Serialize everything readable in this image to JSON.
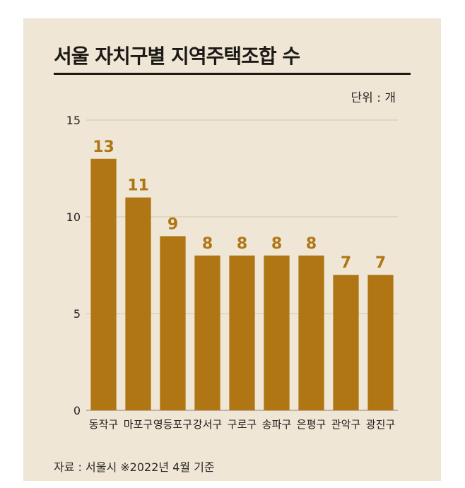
{
  "header": {
    "title": "서울 자치구별 지역주택조합 수",
    "unit": "단위 : 개"
  },
  "footer": {
    "source": "자료 : 서울시 ※2022년 4월 기준"
  },
  "colors": {
    "bar": "#b07614",
    "label": "#b07614",
    "panel": "#efe6d6"
  },
  "chart_data": {
    "type": "bar",
    "title": "서울 자치구별 지역주택조합 수",
    "xlabel": "",
    "ylabel": "",
    "unit": "단위 : 개",
    "categories": [
      "동작구",
      "마포구",
      "영등포구",
      "강서구",
      "구로구",
      "송파구",
      "은평구",
      "관악구",
      "광진구"
    ],
    "values": [
      13,
      11,
      9,
      8,
      8,
      8,
      8,
      7,
      7
    ],
    "value_labels": [
      "13",
      "11",
      "9",
      "8",
      "8",
      "8",
      "8",
      "7",
      "7"
    ],
    "ylim": [
      0,
      15
    ],
    "yticks": [
      0,
      5,
      10,
      15
    ],
    "ytick_labels": [
      "0",
      "5",
      "10",
      "15"
    ],
    "grid": true,
    "legend": "none"
  }
}
